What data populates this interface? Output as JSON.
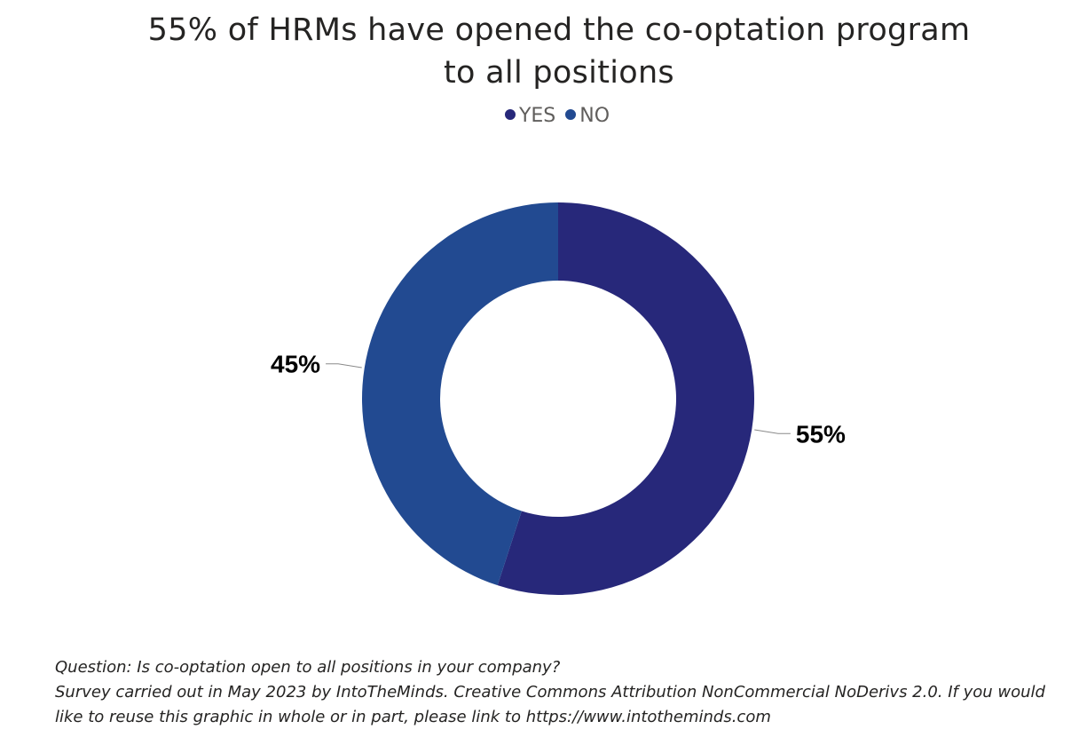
{
  "chart_data": {
    "type": "pie",
    "donut": true,
    "title_lines": [
      "55% of HRMs have opened the co-optation program",
      "to all positions"
    ],
    "categories": [
      "YES",
      "NO"
    ],
    "values": [
      55,
      45
    ],
    "labels": [
      "55%",
      "45%"
    ],
    "colors": [
      "#27287a",
      "#224a91"
    ],
    "legend_position": "top-center"
  },
  "footer": {
    "lines": [
      "Question: Is co-optation open to all positions in your company?",
      "Survey carried out in May 2023 by IntoTheMinds. Creative Commons Attribution NonCommercial NoDerivs 2.0. If you would",
      "like to reuse this graphic in whole or in part, please link to https://www.intotheminds.com"
    ]
  }
}
